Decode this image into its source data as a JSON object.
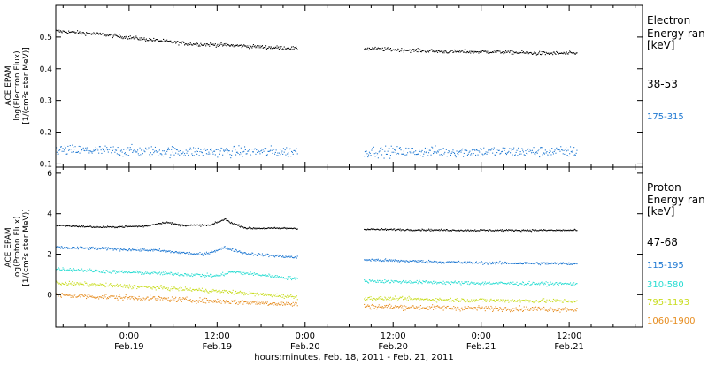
{
  "xlabel": "hours:minutes, Feb. 18, 2011 - Feb. 21, 2011",
  "x_ticks": [
    {
      "t": 24,
      "time": "0:00",
      "date": "Feb.19"
    },
    {
      "t": 36,
      "time": "12:00",
      "date": "Feb.19"
    },
    {
      "t": 48,
      "time": "0:00",
      "date": "Feb.20"
    },
    {
      "t": 60,
      "time": "12:00",
      "date": "Feb.20"
    },
    {
      "t": 72,
      "time": "0:00",
      "date": "Feb.21"
    },
    {
      "t": 84,
      "time": "12:00",
      "date": "Feb.21"
    }
  ],
  "chart_data": [
    {
      "type": "scatter",
      "ylabel_lines": [
        "ACE EPAM",
        "log(Electron Flux)",
        "[1/(cm²s ster MeV)]"
      ],
      "xlim_hours_since_feb18": [
        14,
        94
      ],
      "ylim": [
        0.09,
        0.6
      ],
      "yticks": [
        0.1,
        0.2,
        0.3,
        0.4,
        0.5
      ],
      "legend_title": [
        "Electron",
        "Energy ran",
        "[keV]"
      ],
      "data_gap_hours": [
        47,
        56
      ],
      "series": [
        {
          "name": "38-53",
          "color": "#000000",
          "noise": 0.004,
          "x": [
            14,
            20,
            26,
            32,
            38,
            42,
            47,
            56,
            62,
            68,
            74,
            80,
            85
          ],
          "y": [
            0.52,
            0.51,
            0.495,
            0.48,
            0.475,
            0.47,
            0.465,
            0.465,
            0.46,
            0.455,
            0.455,
            0.45,
            0.45
          ]
        },
        {
          "name": "175-315",
          "color": "#1e78d2",
          "noise": 0.012,
          "x": [
            14,
            30,
            47,
            56,
            70,
            85
          ],
          "y": [
            0.145,
            0.14,
            0.14,
            0.14,
            0.14,
            0.14
          ]
        }
      ]
    },
    {
      "type": "scatter",
      "ylabel_lines": [
        "ACE EPAM",
        "log(Proton Flux)",
        "[1/(cm²s ster MeV)]"
      ],
      "xlim_hours_since_feb18": [
        14,
        94
      ],
      "ylim": [
        -1.6,
        6.3
      ],
      "yticks": [
        0,
        2,
        4,
        6
      ],
      "legend_title": [
        "Proton",
        "Energy ran",
        "[keV]"
      ],
      "data_gap_hours": [
        47,
        56
      ],
      "series": [
        {
          "name": "47-68",
          "color": "#000000",
          "noise": 0.03,
          "x": [
            14,
            20,
            26,
            29,
            31,
            35,
            37,
            38,
            40,
            47,
            56,
            70,
            85
          ],
          "y": [
            3.45,
            3.35,
            3.4,
            3.6,
            3.45,
            3.45,
            3.75,
            3.55,
            3.3,
            3.3,
            3.25,
            3.2,
            3.2
          ]
        },
        {
          "name": "115-195",
          "color": "#1e78d2",
          "noise": 0.05,
          "x": [
            14,
            20,
            28,
            34,
            37,
            40,
            47,
            56,
            60,
            70,
            85
          ],
          "y": [
            2.35,
            2.3,
            2.2,
            2.0,
            2.35,
            2.05,
            1.85,
            1.75,
            1.7,
            1.6,
            1.55
          ]
        },
        {
          "name": "310-580",
          "color": "#28dcd2",
          "noise": 0.06,
          "x": [
            14,
            22,
            30,
            36,
            38,
            47,
            56,
            70,
            85
          ],
          "y": [
            1.3,
            1.15,
            1.05,
            0.95,
            1.15,
            0.8,
            0.7,
            0.6,
            0.55
          ]
        },
        {
          "name": "795-1193",
          "color": "#c8dc1e",
          "noise": 0.07,
          "x": [
            14,
            26,
            36,
            47,
            56,
            70,
            85
          ],
          "y": [
            0.6,
            0.4,
            0.2,
            -0.1,
            -0.15,
            -0.25,
            -0.3
          ]
        },
        {
          "name": "1060-1900",
          "color": "#e68c1e",
          "noise": 0.09,
          "x": [
            14,
            26,
            36,
            47,
            56,
            70,
            85
          ],
          "y": [
            0.0,
            -0.15,
            -0.3,
            -0.45,
            -0.55,
            -0.65,
            -0.7
          ]
        }
      ]
    }
  ]
}
